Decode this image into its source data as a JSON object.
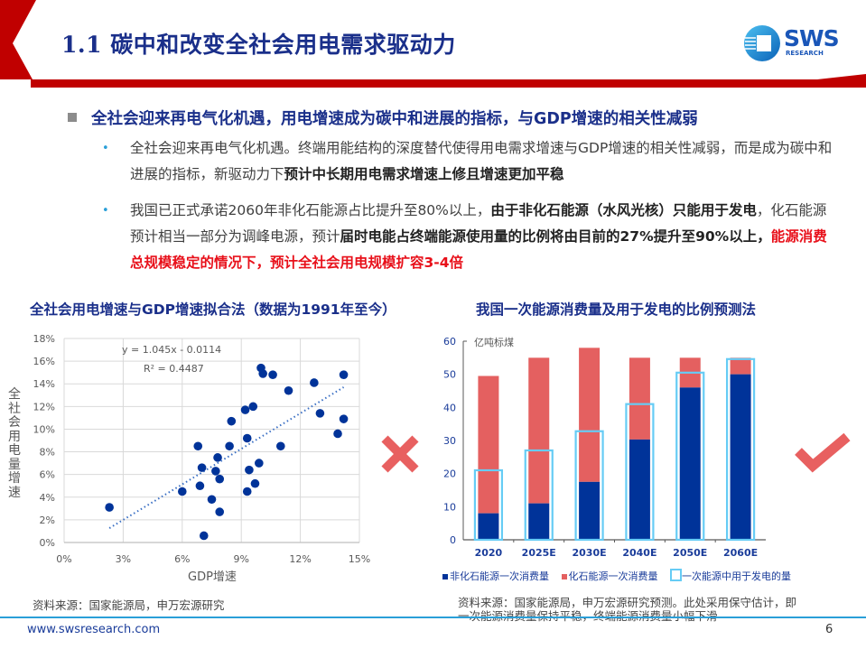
{
  "header": {
    "title": "1.1 碳中和改变全社会用电需求驱动力",
    "logo_text": "SWS",
    "logo_subtext": "RESEARCH"
  },
  "headline": "全社会迎来再电气化机遇，用电增速成为碳中和进展的指标，与GDP增速的相关性减弱",
  "bullets": [
    {
      "parts": [
        {
          "text": "全社会迎来再电气化机遇。终端用能结构的深度替代使得用电需求增速与GDP增速的相关性减弱，而是成为碳中和进展的指标，新驱动力下",
          "style": "normal"
        },
        {
          "text": "预计中长期用电需求增速上修且增速更加平稳",
          "style": "bold"
        }
      ]
    },
    {
      "parts": [
        {
          "text": "我国已正式承诺2060年非化石能源占比提升至80%以上，",
          "style": "normal"
        },
        {
          "text": "由于非化石能源（水风光核）只能用于发电",
          "style": "bold"
        },
        {
          "text": "，化石能源预计相当一部分为调峰电源，预计",
          "style": "normal"
        },
        {
          "text": "届时电能占终端能源使用量的比例将由目前的27%提升至90%以上，",
          "style": "bold"
        },
        {
          "text": "能源消费总规模稳定的情况下，预计全社会用电规模扩容3-4倍",
          "style": "red"
        }
      ]
    }
  ],
  "icons": {
    "cross": "cross-icon",
    "check": "check-icon",
    "mark_color": "#e86060"
  },
  "colors": {
    "title_blue": "#1a2f8a",
    "accent_red": "#c00000",
    "scatter_point": "#003399",
    "non_fossil": "#003399",
    "fossil": "#e46060",
    "outline": "#66ccf5"
  },
  "chart_data": [
    {
      "type": "scatter",
      "title": "全社会用电增速与GDP增速拟合法（数据为1991年至今）",
      "xlabel": "GDP增速",
      "ylabel": "全社会用电量增速",
      "xlim": [
        0,
        15
      ],
      "ylim": [
        0,
        18
      ],
      "x_ticks": [
        "0%",
        "3%",
        "6%",
        "9%",
        "12%",
        "15%"
      ],
      "y_ticks": [
        "0%",
        "2%",
        "4%",
        "6%",
        "8%",
        "10%",
        "12%",
        "14%",
        "16%",
        "18%"
      ],
      "grid": true,
      "trendline": {
        "equation": "y = 1.045x - 0.0114",
        "r2": "R² = 0.4487",
        "x_range": [
          2.3,
          14.2
        ]
      },
      "points": [
        [
          2.3,
          3.1
        ],
        [
          6.0,
          4.5
        ],
        [
          6.8,
          8.5
        ],
        [
          6.9,
          5.0
        ],
        [
          7.0,
          6.6
        ],
        [
          7.1,
          0.6
        ],
        [
          7.5,
          3.8
        ],
        [
          7.7,
          6.3
        ],
        [
          7.8,
          7.5
        ],
        [
          7.9,
          2.7
        ],
        [
          7.9,
          5.6
        ],
        [
          8.4,
          8.5
        ],
        [
          8.5,
          10.7
        ],
        [
          9.2,
          11.7
        ],
        [
          9.3,
          4.5
        ],
        [
          9.3,
          9.2
        ],
        [
          9.4,
          6.4
        ],
        [
          9.6,
          12.0
        ],
        [
          9.7,
          5.2
        ],
        [
          9.9,
          7.0
        ],
        [
          10.0,
          15.4
        ],
        [
          10.1,
          14.9
        ],
        [
          10.6,
          14.8
        ],
        [
          11.0,
          8.5
        ],
        [
          11.4,
          13.4
        ],
        [
          12.7,
          14.1
        ],
        [
          13.0,
          11.4
        ],
        [
          13.9,
          9.6
        ],
        [
          14.2,
          14.8
        ],
        [
          14.2,
          10.9
        ]
      ]
    },
    {
      "type": "bar",
      "stacked": true,
      "title": "我国一次能源消费量及用于发电的比例预测法",
      "unit_label": "亿吨标煤",
      "categories": [
        "2020",
        "2025E",
        "2030E",
        "2040E",
        "2050E",
        "2060E"
      ],
      "ylim": [
        0,
        60
      ],
      "y_ticks": [
        "0",
        "10",
        "20",
        "30",
        "40",
        "50",
        "60"
      ],
      "series": [
        {
          "name": "非化石能源一次消费量",
          "values": [
            8,
            11,
            17.5,
            30.3,
            46,
            50
          ]
        },
        {
          "name": "化石能源一次消费量",
          "values": [
            41.5,
            44,
            40.5,
            24.7,
            9,
            5
          ]
        },
        {
          "name": "一次能源中用于发电的量",
          "values": [
            21,
            27,
            32.8,
            41,
            50.5,
            54.6
          ],
          "style": "outline"
        }
      ],
      "legend_position": "bottom"
    }
  ],
  "left_chart": {
    "title": "全社会用电增速与GDP增速拟合法（数据为1991年至今）",
    "source": "资料来源：国家能源局，申万宏源研究"
  },
  "right_chart": {
    "title": "我国一次能源消费量及用于发电的比例预测法",
    "source": "资料来源：国家能源局，申万宏源研究预测。此处采用保守估计，即一次能源消费量保持平稳，终端能源消费量小幅下滑"
  },
  "footer": {
    "url": "www.swsresearch.com",
    "page": "6"
  }
}
